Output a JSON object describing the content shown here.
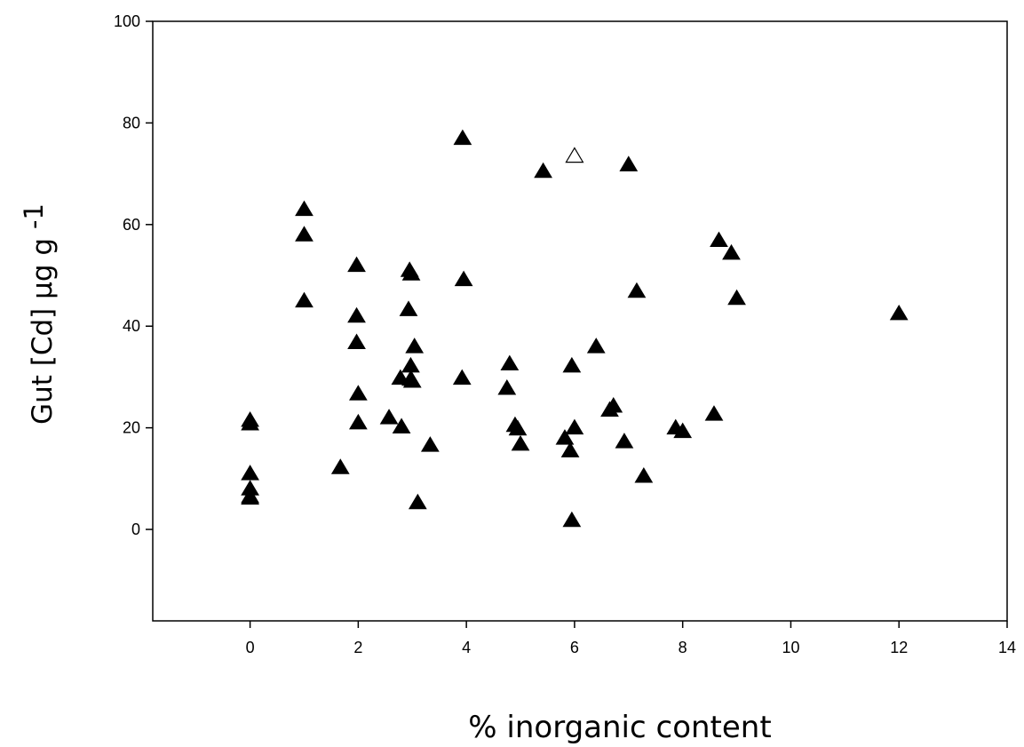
{
  "chart_data": {
    "type": "scatter",
    "title": "",
    "xlabel": "% inorganic content",
    "ylabel": "Gut [Cd] µg g",
    "ylabel_superscript": "-1",
    "xlim": [
      -1.8,
      14
    ],
    "ylim": [
      -18,
      100
    ],
    "x_ticks": [
      0,
      2,
      4,
      6,
      8,
      10,
      12,
      14
    ],
    "y_ticks": [
      0,
      20,
      40,
      60,
      80,
      100
    ],
    "grid": false,
    "legend": "none",
    "series": [
      {
        "marker": "filled-triangle",
        "color": "#000000",
        "points": [
          {
            "x": 0,
            "y": 21.5
          },
          {
            "x": 0,
            "y": 20.8
          },
          {
            "x": 0,
            "y": 11.0
          },
          {
            "x": 0,
            "y": 8.0
          },
          {
            "x": 0,
            "y": 6.5
          },
          {
            "x": 0,
            "y": 6.2
          },
          {
            "x": 1.0,
            "y": 63.0
          },
          {
            "x": 1.0,
            "y": 58.0
          },
          {
            "x": 1.0,
            "y": 45.0
          },
          {
            "x": 1.67,
            "y": 12.2
          },
          {
            "x": 1.97,
            "y": 52.0
          },
          {
            "x": 1.97,
            "y": 42.0
          },
          {
            "x": 1.97,
            "y": 36.8
          },
          {
            "x": 2.0,
            "y": 26.7
          },
          {
            "x": 2.0,
            "y": 21.0
          },
          {
            "x": 2.57,
            "y": 22.0
          },
          {
            "x": 2.8,
            "y": 20.2
          },
          {
            "x": 2.78,
            "y": 29.8
          },
          {
            "x": 2.95,
            "y": 51.0
          },
          {
            "x": 2.98,
            "y": 50.3
          },
          {
            "x": 2.93,
            "y": 43.3
          },
          {
            "x": 2.97,
            "y": 32.2
          },
          {
            "x": 2.97,
            "y": 29.6
          },
          {
            "x": 3.0,
            "y": 29.2
          },
          {
            "x": 3.04,
            "y": 36.0
          },
          {
            "x": 3.1,
            "y": 5.3
          },
          {
            "x": 3.33,
            "y": 16.6
          },
          {
            "x": 3.93,
            "y": 77.0
          },
          {
            "x": 3.95,
            "y": 49.2
          },
          {
            "x": 3.92,
            "y": 29.8
          },
          {
            "x": 4.75,
            "y": 27.8
          },
          {
            "x": 4.8,
            "y": 32.6
          },
          {
            "x": 4.9,
            "y": 20.5
          },
          {
            "x": 4.95,
            "y": 19.8
          },
          {
            "x": 5.0,
            "y": 16.8
          },
          {
            "x": 5.42,
            "y": 70.5
          },
          {
            "x": 5.82,
            "y": 18.0
          },
          {
            "x": 5.92,
            "y": 15.5
          },
          {
            "x": 5.95,
            "y": 32.2
          },
          {
            "x": 5.95,
            "y": 1.8
          },
          {
            "x": 6.0,
            "y": 20.0
          },
          {
            "x": 6.4,
            "y": 36.0
          },
          {
            "x": 6.65,
            "y": 23.5
          },
          {
            "x": 6.72,
            "y": 24.3
          },
          {
            "x": 6.92,
            "y": 17.3
          },
          {
            "x": 7.0,
            "y": 71.8
          },
          {
            "x": 7.15,
            "y": 46.9
          },
          {
            "x": 7.28,
            "y": 10.5
          },
          {
            "x": 7.87,
            "y": 20.0
          },
          {
            "x": 8.0,
            "y": 19.3
          },
          {
            "x": 8.58,
            "y": 22.7
          },
          {
            "x": 8.67,
            "y": 56.9
          },
          {
            "x": 8.9,
            "y": 54.4
          },
          {
            "x": 9.0,
            "y": 45.5
          },
          {
            "x": 12.0,
            "y": 42.5
          }
        ]
      },
      {
        "marker": "open-triangle",
        "color": "#000000",
        "points": [
          {
            "x": 6.0,
            "y": 73.5
          }
        ]
      }
    ]
  }
}
